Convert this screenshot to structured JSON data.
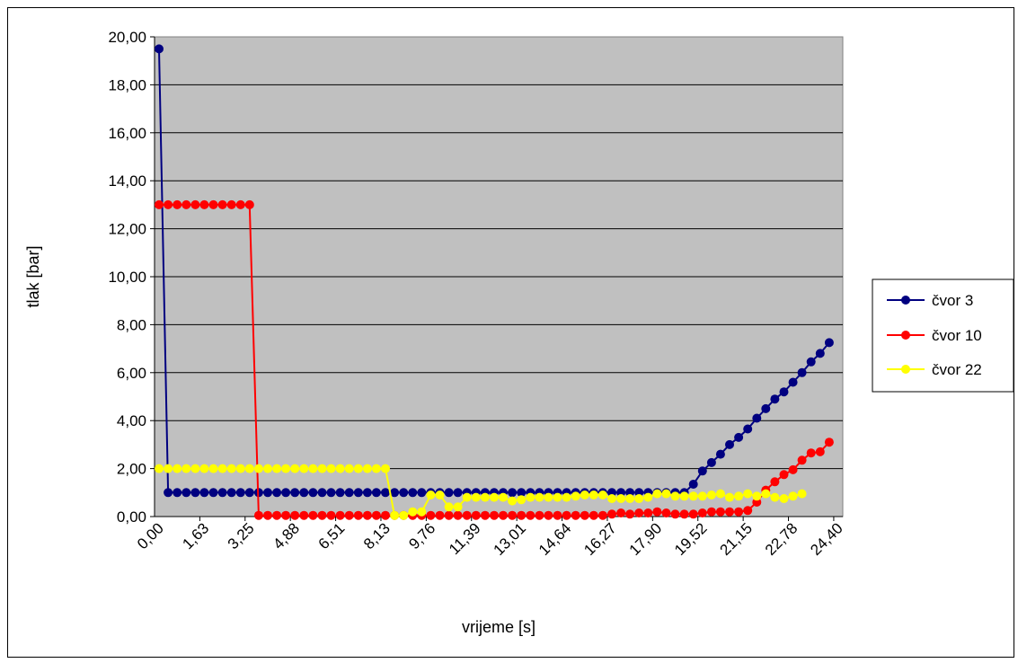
{
  "chart_data": {
    "type": "line",
    "title": "",
    "xlabel": "vrijeme [s]",
    "ylabel": "tlak [bar]",
    "ylim": [
      0,
      20
    ],
    "yticks": [
      "0,00",
      "2,00",
      "4,00",
      "6,00",
      "8,00",
      "10,00",
      "12,00",
      "14,00",
      "16,00",
      "18,00",
      "20,00"
    ],
    "xtick_labels": [
      "0,00",
      "1,63",
      "3,25",
      "4,88",
      "6,51",
      "8,13",
      "9,76",
      "11,39",
      "13,01",
      "14,64",
      "16,27",
      "17,90",
      "19,52",
      "21,15",
      "22,78",
      "24,40"
    ],
    "grid": "horizontal",
    "plot_background": "#c0c0c0",
    "legend_position": "right",
    "x": [
      0.0,
      0.33,
      0.65,
      0.98,
      1.3,
      1.63,
      1.95,
      2.28,
      2.6,
      2.93,
      3.25,
      3.58,
      3.9,
      4.23,
      4.55,
      4.88,
      5.21,
      5.53,
      5.86,
      6.18,
      6.51,
      6.83,
      7.16,
      7.48,
      7.81,
      8.13,
      8.46,
      8.78,
      9.11,
      9.43,
      9.76,
      10.09,
      10.41,
      10.74,
      11.06,
      11.39,
      11.71,
      12.04,
      12.36,
      12.69,
      13.01,
      13.34,
      13.66,
      13.99,
      14.31,
      14.64,
      14.97,
      15.29,
      15.62,
      15.94,
      16.27,
      16.59,
      16.92,
      17.24,
      17.57,
      17.9,
      18.22,
      18.55,
      18.87,
      19.2,
      19.52,
      19.85,
      20.17,
      20.5,
      20.82,
      21.15,
      21.47,
      21.8,
      22.13,
      22.45,
      22.78,
      23.1,
      23.43,
      23.75,
      24.08,
      24.4
    ],
    "series": [
      {
        "name": "čvor 3",
        "color": "#000080",
        "values": [
          19.5,
          1.0,
          1.0,
          1.0,
          1.0,
          1.0,
          1.0,
          1.0,
          1.0,
          1.0,
          1.0,
          1.0,
          1.0,
          1.0,
          1.0,
          1.0,
          1.0,
          1.0,
          1.0,
          1.0,
          1.0,
          1.0,
          1.0,
          1.0,
          1.0,
          1.0,
          1.0,
          1.0,
          1.0,
          1.0,
          1.0,
          1.0,
          1.0,
          1.0,
          1.0,
          1.0,
          1.0,
          1.0,
          1.0,
          1.0,
          1.0,
          1.0,
          1.0,
          1.0,
          1.0,
          1.0,
          1.0,
          1.0,
          1.0,
          1.0,
          1.0,
          1.0,
          1.0,
          1.0,
          1.0,
          1.0,
          1.0,
          1.0,
          1.0,
          1.35,
          1.9,
          2.25,
          2.6,
          3.0,
          3.3,
          3.65,
          4.1,
          4.5,
          4.9,
          5.2,
          5.6,
          6.0,
          6.45,
          6.8,
          7.25,
          null
        ]
      },
      {
        "name": "čvor 10",
        "color": "#ff0000",
        "values": [
          13.0,
          13.0,
          13.0,
          13.0,
          13.0,
          13.0,
          13.0,
          13.0,
          13.0,
          13.0,
          13.0,
          0.05,
          0.05,
          0.05,
          0.05,
          0.05,
          0.05,
          0.05,
          0.05,
          0.05,
          0.05,
          0.05,
          0.05,
          0.05,
          0.05,
          0.05,
          0.05,
          0.05,
          0.05,
          0.05,
          0.05,
          0.05,
          0.05,
          0.05,
          0.05,
          0.05,
          0.05,
          0.05,
          0.05,
          0.05,
          0.05,
          0.05,
          0.05,
          0.05,
          0.05,
          0.05,
          0.05,
          0.05,
          0.05,
          0.05,
          0.1,
          0.15,
          0.1,
          0.15,
          0.15,
          0.2,
          0.15,
          0.1,
          0.1,
          0.1,
          0.15,
          0.2,
          0.2,
          0.2,
          0.2,
          0.25,
          0.6,
          1.1,
          1.45,
          1.75,
          1.95,
          2.35,
          2.65,
          2.7,
          3.1,
          null
        ]
      },
      {
        "name": "čvor 22",
        "color": "#ffff00",
        "values": [
          2.0,
          2.0,
          2.0,
          2.0,
          2.0,
          2.0,
          2.0,
          2.0,
          2.0,
          2.0,
          2.0,
          2.0,
          2.0,
          2.0,
          2.0,
          2.0,
          2.0,
          2.0,
          2.0,
          2.0,
          2.0,
          2.0,
          2.0,
          2.0,
          2.0,
          2.0,
          0.05,
          0.05,
          0.2,
          0.2,
          0.9,
          0.9,
          0.4,
          0.4,
          0.8,
          0.8,
          0.8,
          0.8,
          0.8,
          0.65,
          0.7,
          0.8,
          0.8,
          0.8,
          0.8,
          0.8,
          0.85,
          0.9,
          0.9,
          0.9,
          0.75,
          0.75,
          0.75,
          0.75,
          0.8,
          0.95,
          0.95,
          0.85,
          0.85,
          0.85,
          0.85,
          0.9,
          0.95,
          0.8,
          0.85,
          0.95,
          0.85,
          0.95,
          0.8,
          0.75,
          0.85,
          0.95,
          null,
          null,
          null,
          null
        ]
      }
    ]
  }
}
